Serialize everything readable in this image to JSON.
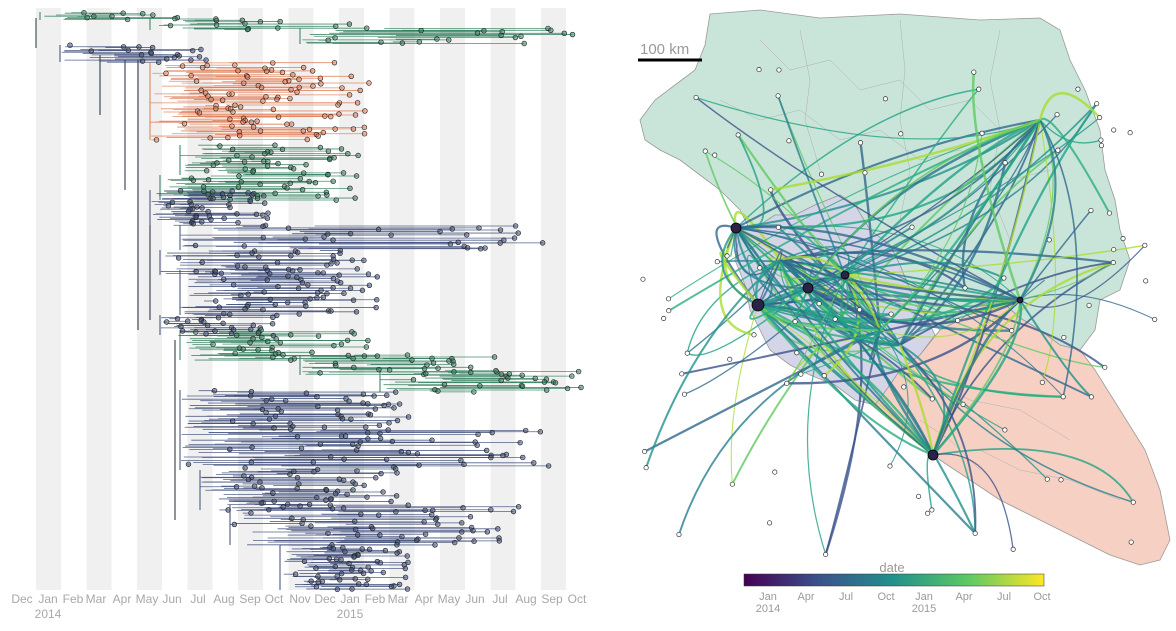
{
  "tree": {
    "month_labels": [
      "Dec",
      "Jan",
      "Feb",
      "Mar",
      "Apr",
      "May",
      "Jun",
      "Jul",
      "Aug",
      "Sep",
      "Oct",
      "Nov",
      "Dec",
      "Jan",
      "Feb",
      "Mar",
      "Apr",
      "May",
      "Jun",
      "Jul",
      "Aug",
      "Sep",
      "Oct"
    ],
    "year_labels": [
      "2014",
      "2015"
    ],
    "colors": {
      "guinea": "#2e7d5b",
      "sierra_leone": "#3b4a78",
      "liberia": "#e07a52",
      "stripe": "#f0f0f0"
    }
  },
  "map": {
    "scale_label": "100 km",
    "legend": {
      "title": "date",
      "ticks": [
        "Jan",
        "Apr",
        "Jul",
        "Oct",
        "Jan",
        "Apr",
        "Jul",
        "Oct"
      ],
      "years": [
        "2014",
        "2015"
      ]
    },
    "colors": {
      "guinea": "#c9e4d8",
      "sierra_leone": "#d4d6e8",
      "liberia": "#f6d0c2",
      "border": "#9a9a9a"
    }
  }
}
